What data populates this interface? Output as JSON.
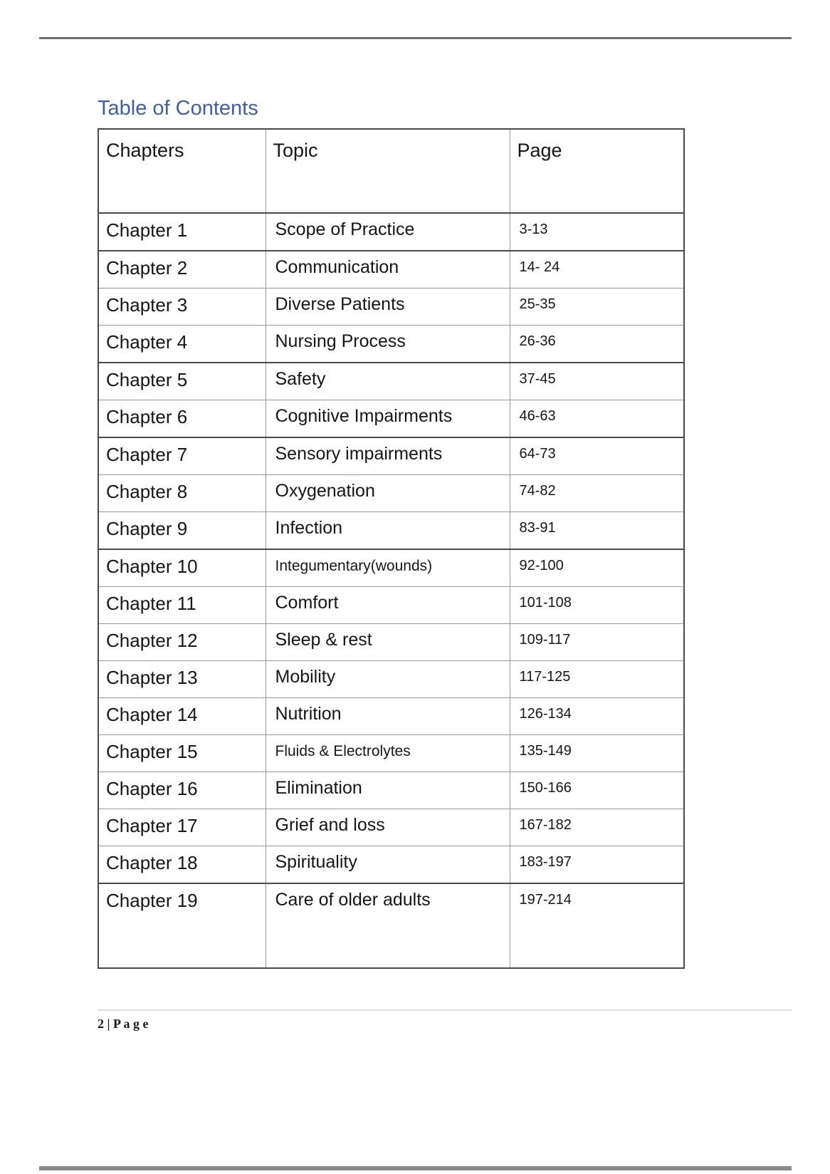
{
  "page": {
    "title": "Table of Contents",
    "footer_label": "2 | P a g e"
  },
  "colors": {
    "title_blue": "#3E5FA6"
  },
  "table": {
    "headers": [
      "Chapters",
      "Topic",
      "Page"
    ],
    "rows": [
      {
        "chapter": "Chapter 1",
        "topic": "Scope of Practice",
        "pages": "3-13"
      },
      {
        "chapter": "Chapter 2",
        "topic": "Communication",
        "pages": "14- 24"
      },
      {
        "chapter": "Chapter 3",
        "topic": "Diverse Patients",
        "pages": "25-35"
      },
      {
        "chapter": "Chapter 4",
        "topic": "Nursing Process",
        "pages": "26-36"
      },
      {
        "chapter": "Chapter 5",
        "topic": "Safety",
        "pages": "37-45"
      },
      {
        "chapter": "Chapter 6",
        "topic": "Cognitive Impairments",
        "pages": "46-63"
      },
      {
        "chapter": "Chapter 7",
        "topic": "Sensory impairments",
        "pages": "64-73"
      },
      {
        "chapter": "Chapter 8",
        "topic": "Oxygenation",
        "pages": "74-82"
      },
      {
        "chapter": "Chapter 9",
        "topic": "Infection",
        "pages": "83-91"
      },
      {
        "chapter": "Chapter 10",
        "topic": "Integumentary(wounds)",
        "pages": "92-100"
      },
      {
        "chapter": "Chapter 11",
        "topic": "Comfort",
        "pages": "101-108"
      },
      {
        "chapter": "Chapter 12",
        "topic": "Sleep & rest",
        "pages": "109-117"
      },
      {
        "chapter": "Chapter 13",
        "topic": "Mobility",
        "pages": "117-125"
      },
      {
        "chapter": "Chapter 14",
        "topic": "Nutrition",
        "pages": "126-134"
      },
      {
        "chapter": "Chapter 15",
        "topic": "Fluids & Electrolytes",
        "pages": "135-149"
      },
      {
        "chapter": "Chapter 16",
        "topic": "Elimination",
        "pages": "150-166"
      },
      {
        "chapter": "Chapter 17",
        "topic": "Grief and loss",
        "pages": "167-182"
      },
      {
        "chapter": "Chapter 18",
        "topic": "Spirituality",
        "pages": "183-197"
      },
      {
        "chapter": "Chapter 19",
        "topic": "Care of older adults",
        "pages": "197-214"
      }
    ]
  }
}
